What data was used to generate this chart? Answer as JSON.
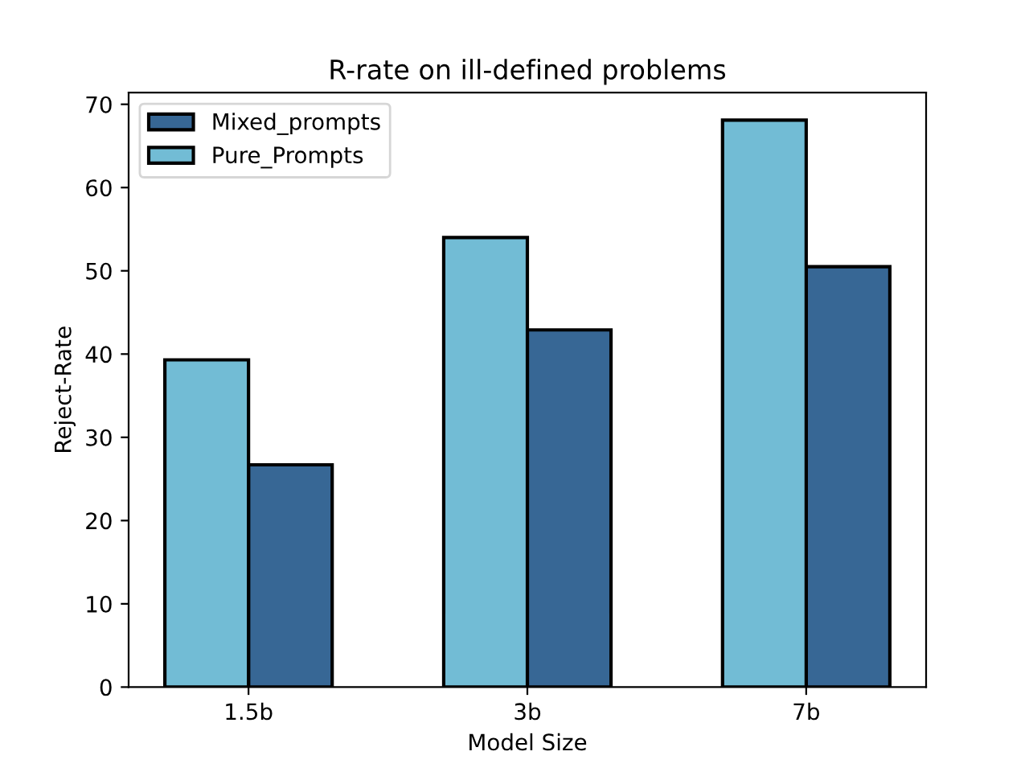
{
  "chart_data": {
    "type": "bar",
    "title": "R-rate on ill-defined problems",
    "xlabel": "Model Size",
    "ylabel": "Reject-Rate",
    "categories": [
      "1.5b",
      "3b",
      "7b"
    ],
    "series": [
      {
        "name": "Mixed_prompts",
        "color": "#376795",
        "values": [
          26.7,
          42.9,
          50.5
        ]
      },
      {
        "name": "Pure_Prompts",
        "color": "#72bcd5",
        "values": [
          39.3,
          54.0,
          68.1
        ]
      }
    ],
    "ylim": [
      0,
      71.4
    ],
    "yticks": [
      0,
      10,
      20,
      30,
      40,
      50,
      60,
      70
    ],
    "legend": "top left",
    "grid": false
  }
}
